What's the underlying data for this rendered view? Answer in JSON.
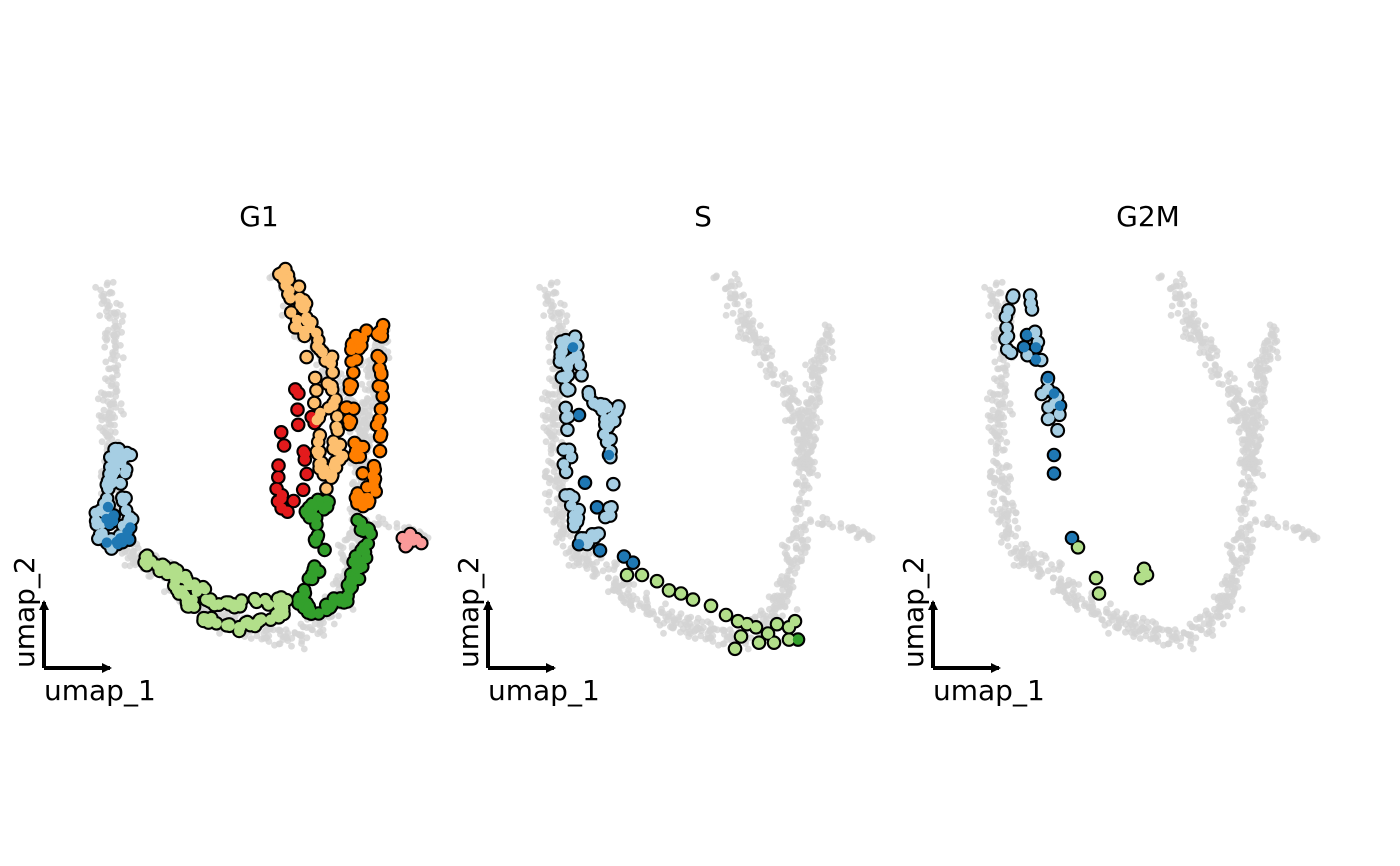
{
  "chart_data": {
    "type": "scatter",
    "background_color": "#D3D3D3",
    "highlight_outline": "#000000",
    "axis_labels": {
      "x": "umap_1",
      "y": "umap_2"
    },
    "cluster_colors": {
      "light_blue": "#A6CEE3",
      "dark_blue": "#1F78B4",
      "light_green": "#B2DF8A",
      "dark_green": "#33A02C",
      "pink": "#FB9A99",
      "red": "#E31A1C",
      "light_orange": "#FDBF6F",
      "orange": "#FF7F00"
    },
    "panels": [
      {
        "title": "G1",
        "highlight": [
          {
            "cluster": "light_blue",
            "shape": [
              [
                -8.6,
                1.7
              ],
              [
                -8.8,
                0.9
              ],
              [
                -8.9,
                0.2
              ],
              [
                -9.2,
                -0.5
              ],
              [
                -9.0,
                -1.4
              ],
              [
                -8.4,
                -1.2
              ],
              [
                -8.2,
                -0.4
              ],
              [
                -8.5,
                0.6
              ],
              [
                -8.2,
                1.6
              ]
            ],
            "n": 70
          },
          {
            "cluster": "dark_blue",
            "shape": [
              [
                -8.8,
                -0.2
              ],
              [
                -8.9,
                -1.4
              ],
              [
                -8.1,
                -1.3
              ],
              [
                -8.3,
                -0.6
              ]
            ],
            "n": 16
          },
          {
            "cluster": "light_green",
            "shape": [
              [
                -7.8,
                -1.8
              ],
              [
                -6.9,
                -2.3
              ],
              [
                -6.3,
                -3.2
              ],
              [
                -5.8,
                -3.8
              ],
              [
                -4.6,
                -4.1
              ],
              [
                -3.3,
                -3.8
              ],
              [
                -3.0,
                -3.2
              ],
              [
                -4.2,
                -3.3
              ],
              [
                -5.3,
                -3.4
              ],
              [
                -6.2,
                -2.6
              ],
              [
                -7.1,
                -1.9
              ]
            ],
            "n": 110
          },
          {
            "cluster": "dark_green",
            "shape": [
              [
                -0.6,
                -0.4
              ],
              [
                -0.2,
                -1.1
              ],
              [
                -0.5,
                -2.0
              ],
              [
                -1.0,
                -3.2
              ],
              [
                -2.0,
                -3.6
              ],
              [
                -2.6,
                -3.3
              ],
              [
                -1.9,
                -2.2
              ],
              [
                -1.9,
                -1.0
              ],
              [
                -2.2,
                -0.2
              ],
              [
                -1.3,
                0.1
              ]
            ],
            "n": 90
          },
          {
            "cluster": "red",
            "shape": [
              [
                -2.6,
                3.6
              ],
              [
                -2.5,
                2.5
              ],
              [
                -3.0,
                2.2
              ],
              [
                -3.2,
                1.6
              ],
              [
                -3.2,
                0.5
              ],
              [
                -3.1,
                -0.4
              ],
              [
                -2.3,
                0.4
              ],
              [
                -2.3,
                1.5
              ],
              [
                -2.1,
                2.9
              ]
            ],
            "n": 22
          },
          {
            "cluster": "light_orange",
            "shape": [
              [
                -3.1,
                7.6
              ],
              [
                -2.7,
                6.1
              ],
              [
                -2.3,
                5.0
              ],
              [
                -1.8,
                3.3
              ],
              [
                -1.9,
                1.8
              ],
              [
                -1.6,
                0.6
              ],
              [
                -1.2,
                1.4
              ],
              [
                -1.3,
                2.8
              ],
              [
                -1.5,
                4.4
              ],
              [
                -2.2,
                5.8
              ],
              [
                -2.6,
                7.2
              ]
            ],
            "n": 85
          },
          {
            "cluster": "orange",
            "shape": [
              [
                0.3,
                5.7
              ],
              [
                0.1,
                4.6
              ],
              [
                0.2,
                3.0
              ],
              [
                0.1,
                1.5
              ],
              [
                -0.1,
                0.1
              ],
              [
                -0.6,
                0.0
              ],
              [
                -0.5,
                1.5
              ],
              [
                -0.9,
                3.0
              ],
              [
                -0.8,
                4.7
              ],
              [
                -0.4,
                5.6
              ]
            ],
            "n": 80
          },
          {
            "cluster": "pink",
            "shape": [
              [
                0.5,
                -1.2
              ],
              [
                1.5,
                -1.4
              ],
              [
                1.0,
                -1.1
              ]
            ],
            "n": 8
          }
        ]
      },
      {
        "title": "S",
        "highlight": [
          {
            "cluster": "light_blue",
            "shape": [
              [
                -8.4,
                5.6
              ],
              [
                -8.5,
                4.4
              ],
              [
                -8.4,
                3.1
              ],
              [
                -8.5,
                1.9
              ],
              [
                -8.4,
                0.6
              ],
              [
                -8.2,
                -0.6
              ],
              [
                -7.8,
                -1.4
              ],
              [
                -7.0,
                -0.4
              ],
              [
                -7.0,
                1.0
              ],
              [
                -7.1,
                2.4
              ],
              [
                -6.8,
                3.0
              ],
              [
                -7.5,
                3.1
              ],
              [
                -8.1,
                4.6
              ],
              [
                -8.1,
                5.6
              ]
            ],
            "n": 95
          },
          {
            "cluster": "dark_blue",
            "points": [
              [
                -8.2,
                5.0
              ],
              [
                -8.0,
                2.8
              ],
              [
                -7.8,
                0.6
              ],
              [
                -7.4,
                -0.2
              ],
              [
                -7.0,
                1.5
              ],
              [
                -8.0,
                -1.4
              ],
              [
                -7.3,
                -1.6
              ],
              [
                -6.5,
                -1.8
              ],
              [
                -6.2,
                -2.0
              ]
            ]
          },
          {
            "cluster": "light_green",
            "points": [
              [
                -6.4,
                -2.4
              ],
              [
                -5.9,
                -2.4
              ],
              [
                -5.4,
                -2.6
              ],
              [
                -5.0,
                -2.9
              ],
              [
                -4.6,
                -3.0
              ],
              [
                -4.2,
                -3.2
              ],
              [
                -3.6,
                -3.4
              ],
              [
                -3.1,
                -3.7
              ],
              [
                -2.7,
                -3.9
              ],
              [
                -2.4,
                -4.0
              ],
              [
                -2.1,
                -4.1
              ],
              [
                -1.7,
                -4.3
              ],
              [
                -1.4,
                -4.0
              ],
              [
                -1.0,
                -4.1
              ],
              [
                -0.8,
                -3.9
              ],
              [
                -2.6,
                -4.4
              ],
              [
                -2.0,
                -4.6
              ],
              [
                -2.8,
                -4.8
              ],
              [
                -1.5,
                -4.6
              ],
              [
                -1.0,
                -4.5
              ]
            ]
          },
          {
            "cluster": "dark_green",
            "points": [
              [
                -0.7,
                -4.5
              ]
            ]
          }
        ]
      },
      {
        "title": "G2M",
        "highlight": [
          {
            "cluster": "light_blue",
            "shape": [
              [
                -8.3,
                7.0
              ],
              [
                -8.5,
                5.8
              ],
              [
                -8.7,
                5.0
              ],
              [
                -7.9,
                4.6
              ],
              [
                -7.4,
                5.2
              ],
              [
                -7.3,
                3.9
              ],
              [
                -7.1,
                2.6
              ],
              [
                -6.8,
                2.2
              ],
              [
                -6.9,
                3.4
              ],
              [
                -7.4,
                4.2
              ],
              [
                -7.6,
                5.6
              ],
              [
                -7.9,
                6.9
              ]
            ],
            "n": 30
          },
          {
            "cluster": "dark_blue",
            "points": [
              [
                -7.9,
                5.4
              ],
              [
                -7.6,
                5.0
              ],
              [
                -7.2,
                4.0
              ],
              [
                -7.0,
                3.5
              ],
              [
                -6.8,
                3.1
              ],
              [
                -7.0,
                1.5
              ],
              [
                -7.0,
                0.9
              ],
              [
                -7.6,
                4.6
              ],
              [
                -8.0,
                5.0
              ],
              [
                -6.4,
                -1.2
              ]
            ]
          },
          {
            "cluster": "light_green",
            "points": [
              [
                -6.2,
                -1.5
              ],
              [
                -5.6,
                -2.5
              ],
              [
                -5.5,
                -3.0
              ],
              [
                -4.0,
                -2.2
              ],
              [
                -4.1,
                -2.5
              ],
              [
                -3.9,
                -2.4
              ]
            ]
          }
        ]
      }
    ]
  }
}
